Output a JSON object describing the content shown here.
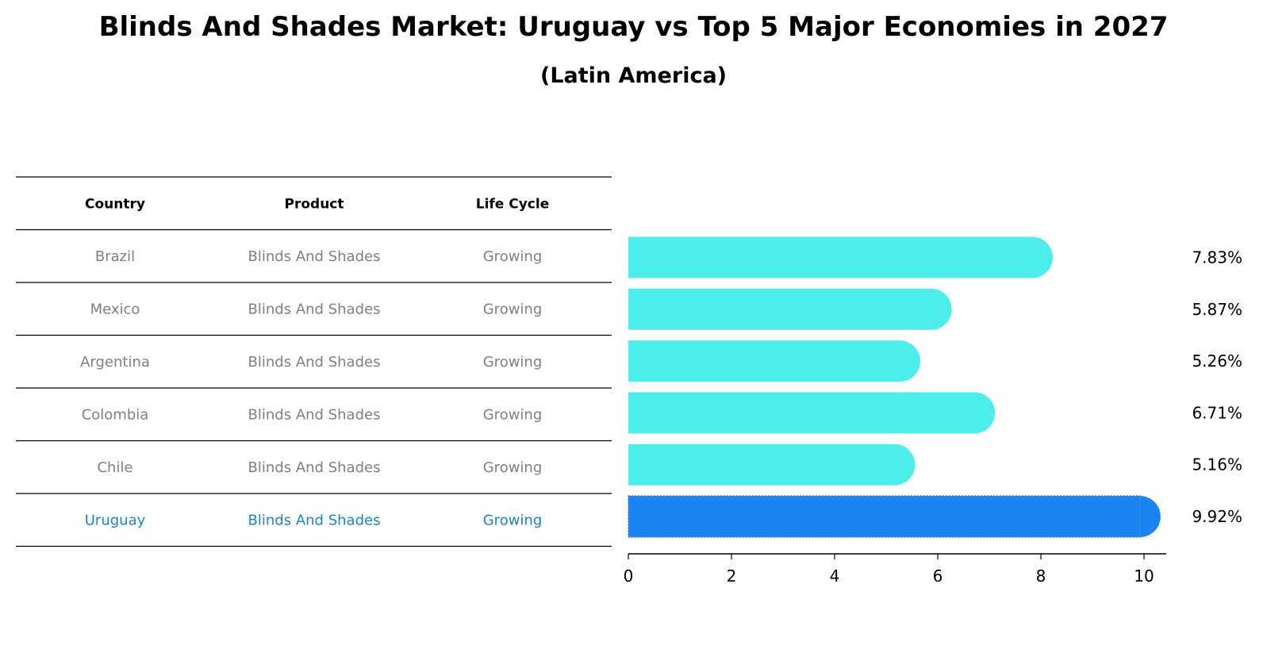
{
  "chart_data": {
    "type": "bar",
    "title": "Blinds And Shades Market: Uruguay vs Top 5 Major Economies in 2027",
    "subtitle": "(Latin America)",
    "table": {
      "headers": [
        "Country",
        "Product",
        "Life Cycle"
      ],
      "rows": [
        {
          "country": "Brazil",
          "product": "Blinds And Shades",
          "life_cycle": "Growing"
        },
        {
          "country": "Mexico",
          "product": "Blinds And Shades",
          "life_cycle": "Growing"
        },
        {
          "country": "Argentina",
          "product": "Blinds And Shades",
          "life_cycle": "Growing"
        },
        {
          "country": "Colombia",
          "product": "Blinds And Shades",
          "life_cycle": "Growing"
        },
        {
          "country": "Chile",
          "product": "Blinds And Shades",
          "life_cycle": "Growing"
        },
        {
          "country": "Uruguay",
          "product": "Blinds And Shades",
          "life_cycle": "Growing"
        }
      ]
    },
    "categories": [
      "Brazil",
      "Mexico",
      "Argentina",
      "Colombia",
      "Chile",
      "Uruguay"
    ],
    "values": [
      7.83,
      5.87,
      5.26,
      6.71,
      5.16,
      9.92
    ],
    "value_labels": [
      "7.83%",
      "5.87%",
      "5.26%",
      "6.71%",
      "5.16%",
      "9.92%"
    ],
    "highlight": "Uruguay",
    "xlim": [
      0,
      10.4
    ],
    "xticks": [
      0,
      2,
      4,
      6,
      8,
      10
    ],
    "colors": {
      "bar": "#4DEDEB",
      "highlight_bar": "#1A84F2",
      "muted_text": "#808080",
      "highlight_text": "#1A84CE",
      "rule": "#000000"
    }
  }
}
